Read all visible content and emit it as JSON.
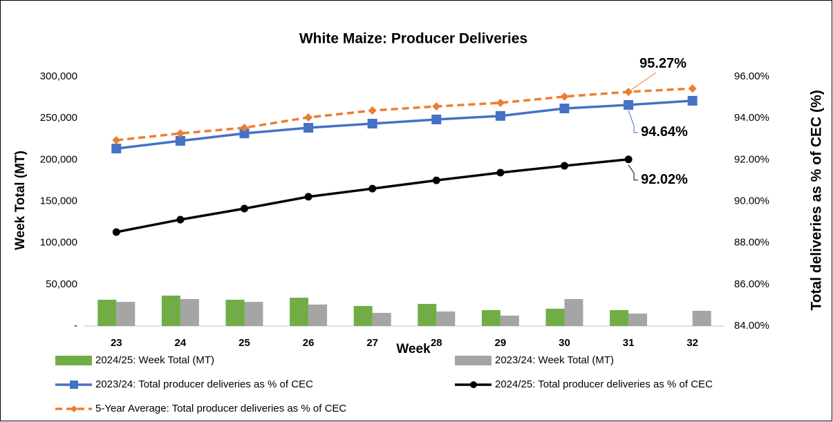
{
  "chart_data": {
    "type": "bar",
    "title": "White Maize: Producer Deliveries",
    "x_label": "Week",
    "y_label": "Week Total (MT)",
    "y2_label": "Total deliveries as % of CEC (%)",
    "categories": [
      "23",
      "24",
      "25",
      "26",
      "27",
      "28",
      "29",
      "30",
      "31",
      "32"
    ],
    "ylim": [
      0,
      300000
    ],
    "yticks": [
      {
        "value": 0,
        "label": "-"
      },
      {
        "value": 50000,
        "label": "50,000"
      },
      {
        "value": 100000,
        "label": "100,000"
      },
      {
        "value": 150000,
        "label": "150,000"
      },
      {
        "value": 200000,
        "label": "200,000"
      },
      {
        "value": 250000,
        "label": "250,000"
      },
      {
        "value": 300000,
        "label": "300,000"
      }
    ],
    "y2lim": [
      84,
      96
    ],
    "y2ticks": [
      {
        "value": 84,
        "label": "84.00%"
      },
      {
        "value": 86,
        "label": "86.00%"
      },
      {
        "value": 88,
        "label": "88.00%"
      },
      {
        "value": 90,
        "label": "90.00%"
      },
      {
        "value": 92,
        "label": "92.00%"
      },
      {
        "value": 94,
        "label": "94.00%"
      },
      {
        "value": 96,
        "label": "96.00%"
      }
    ],
    "grid": false,
    "series": [
      {
        "name": "2024/25: Week Total (MT)",
        "type": "bar",
        "color": "#70ad47",
        "values": [
          31600,
          36600,
          31600,
          34000,
          24100,
          26600,
          19100,
          20800,
          19100,
          null
        ]
      },
      {
        "name": "2023/24: Week Total (MT)",
        "type": "bar",
        "color": "#a5a5a5",
        "values": [
          29000,
          32400,
          29000,
          25800,
          15800,
          17500,
          12500,
          32400,
          15000,
          18300
        ]
      },
      {
        "name": "2023/24: Total producer deliveries as % of CEC",
        "type": "line",
        "axis": "y2",
        "color": "#4472c4",
        "marker": "square",
        "values": [
          92.54,
          92.91,
          93.27,
          93.54,
          93.74,
          93.94,
          94.11,
          94.47,
          94.64,
          94.84
        ],
        "value_labels": [
          null,
          null,
          null,
          null,
          null,
          null,
          null,
          null,
          "94.64%",
          null
        ]
      },
      {
        "name": "2024/25: Total producer deliveries as % of CEC",
        "type": "line",
        "axis": "y2",
        "color": "#000000",
        "marker": "circle",
        "values": [
          88.52,
          89.12,
          89.65,
          90.22,
          90.61,
          91.01,
          91.38,
          91.71,
          92.02,
          null
        ],
        "value_labels": [
          null,
          null,
          null,
          null,
          null,
          null,
          null,
          null,
          "92.02%",
          null
        ]
      },
      {
        "name": "5-Year Average: Total producer deliveries as % of CEC",
        "type": "line",
        "axis": "y2",
        "color": "#ed7d31",
        "marker": "diamond",
        "dash": true,
        "values": [
          92.94,
          93.27,
          93.54,
          94.04,
          94.37,
          94.57,
          94.74,
          95.04,
          95.27,
          95.43
        ],
        "value_labels": [
          null,
          null,
          null,
          null,
          null,
          null,
          null,
          null,
          "95.27%",
          null
        ]
      }
    ]
  }
}
